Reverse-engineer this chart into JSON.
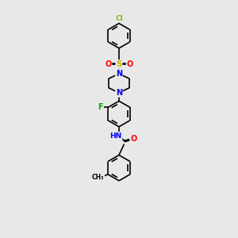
{
  "background_color": "#e8e8e8",
  "bond_color": "black",
  "bond_width": 1.2,
  "atom_colors": {
    "C": "black",
    "N": "#0000ff",
    "O": "#ff0000",
    "F": "#00aa00",
    "Cl": "#7fbf00",
    "S": "#c8b400",
    "H": "#00aaaa"
  },
  "figsize": [
    3.0,
    3.0
  ],
  "dpi": 100
}
